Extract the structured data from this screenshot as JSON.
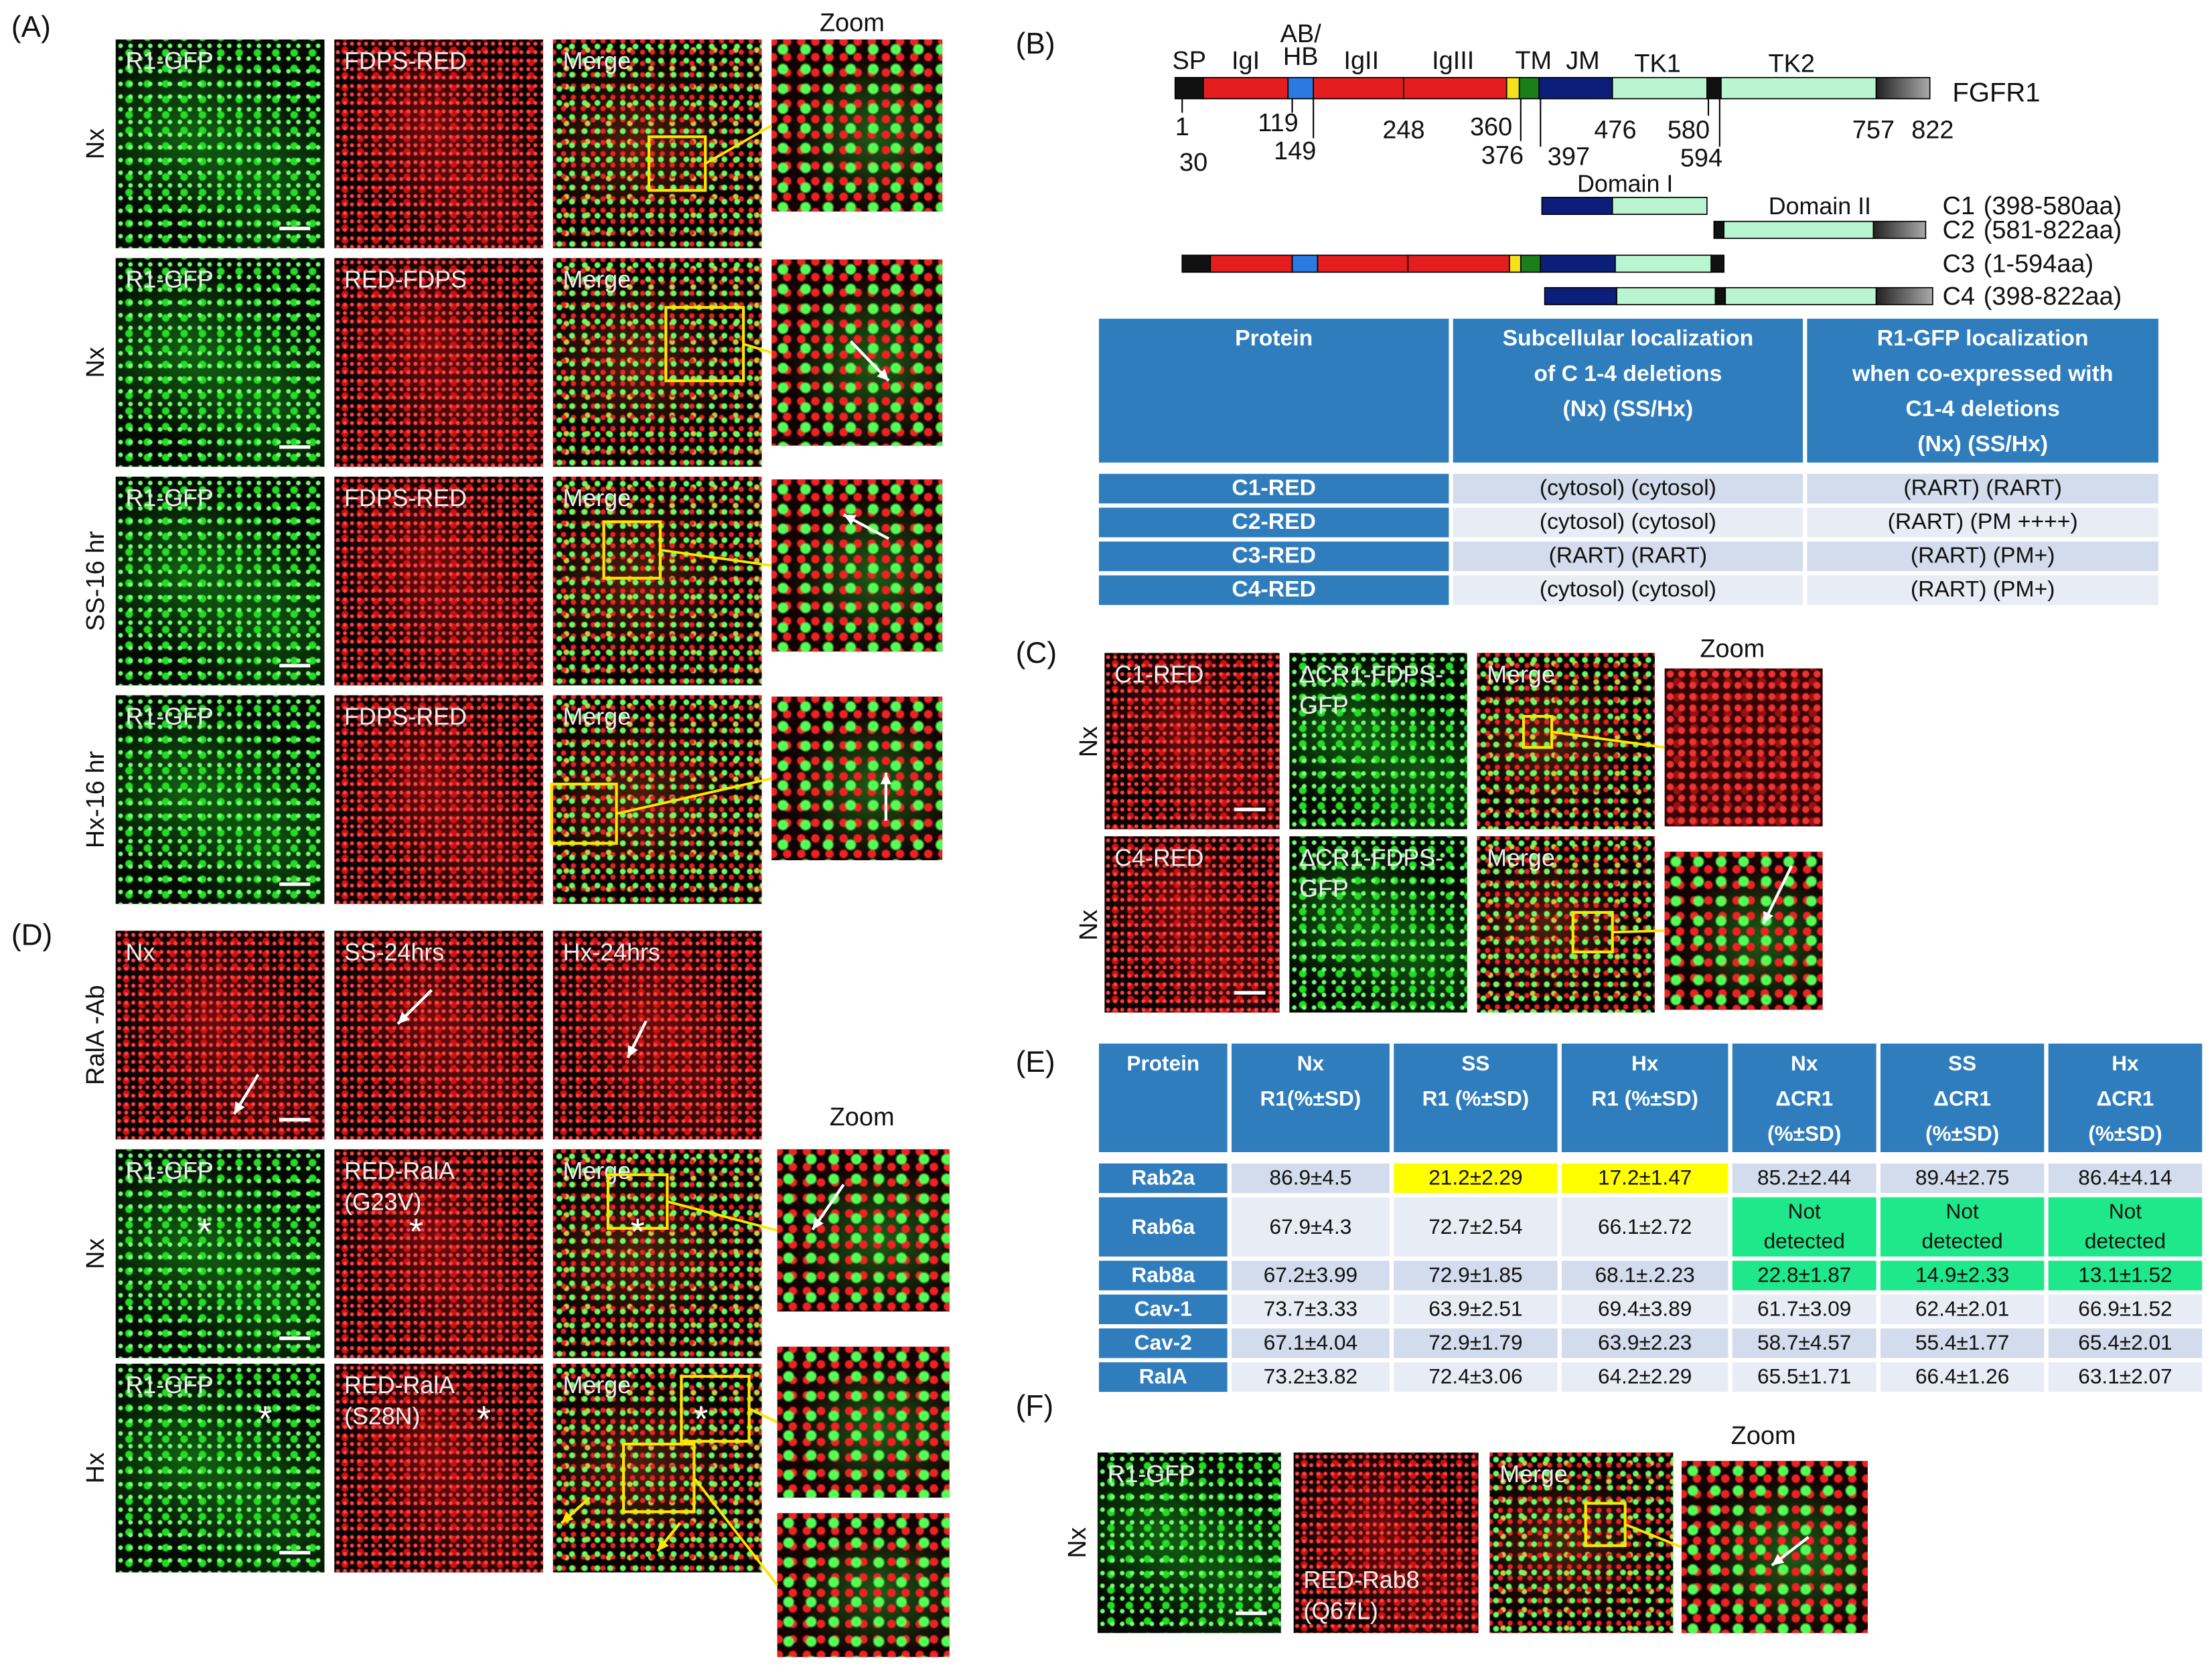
{
  "panel_A": {
    "label": "(A)",
    "zoom_header": "Zoom",
    "zooms": [
      "merge",
      "merge",
      "merge",
      "merge"
    ],
    "rows": [
      {
        "condition": "Nx",
        "images": [
          {
            "text": [
              "R1-GFP"
            ],
            "channel": "green"
          },
          {
            "text": [
              "FDPS-RED"
            ],
            "channel": "red"
          },
          {
            "text": [
              "Merge"
            ],
            "channel": "merge"
          }
        ]
      },
      {
        "condition": "Nx",
        "images": [
          {
            "text": [
              "R1-GFP"
            ],
            "channel": "green"
          },
          {
            "text": [
              "RED-FDPS"
            ],
            "channel": "red"
          },
          {
            "text": [
              "Merge"
            ],
            "channel": "merge"
          }
        ]
      },
      {
        "condition": "SS-16 hr",
        "images": [
          {
            "text": [
              "R1-GFP"
            ],
            "channel": "green"
          },
          {
            "text": [
              "FDPS-RED"
            ],
            "channel": "red"
          },
          {
            "text": [
              "Merge"
            ],
            "channel": "merge"
          }
        ]
      },
      {
        "condition": "Hx-16 hr",
        "images": [
          {
            "text": [
              "R1-GFP"
            ],
            "channel": "green"
          },
          {
            "text": [
              "FDPS-RED"
            ],
            "channel": "red"
          },
          {
            "text": [
              "Merge"
            ],
            "channel": "merge"
          }
        ]
      }
    ]
  },
  "panel_B": {
    "label": "(B)",
    "protein": "FGFR1",
    "domain_labels": [
      [
        "SP"
      ],
      [
        "IgI"
      ],
      [
        "AB/",
        "HB"
      ],
      [
        "IgII"
      ],
      [
        "IgIII"
      ],
      [
        "TM"
      ],
      [
        "JM"
      ],
      [
        "TK1"
      ],
      [
        "TK2"
      ]
    ],
    "positions": [
      1,
      30,
      119,
      149,
      248,
      360,
      376,
      397,
      476,
      580,
      594,
      757,
      822
    ],
    "region_labels": [
      "Domain I",
      "Domain II"
    ],
    "constructs": [
      {
        "name": "C1",
        "range": "(398-580aa)"
      },
      {
        "name": "C2",
        "range": "(581-822aa)"
      },
      {
        "name": "C3",
        "range": "(1-594aa)"
      },
      {
        "name": "C4",
        "range": "(398-822aa)"
      }
    ],
    "table": {
      "header": [
        [
          "Protein"
        ],
        [
          "Subcellular localization",
          "of  C 1-4 deletions",
          "(Nx) (SS/Hx)"
        ],
        [
          "R1-GFP localization",
          "when co-expressed with",
          "C1-4  deletions",
          "(Nx) (SS/Hx)"
        ]
      ],
      "rows": [
        [
          "C1-RED",
          "(cytosol) (cytosol)",
          "(RART) (RART)"
        ],
        [
          "C2-RED",
          "(cytosol) (cytosol)",
          "(RART) (PM ++++)"
        ],
        [
          "C3-RED",
          "(RART) (RART)",
          "(RART) (PM+)"
        ],
        [
          "C4-RED",
          "(cytosol) (cytosol)",
          "(RART) (PM+)"
        ]
      ]
    }
  },
  "panel_C": {
    "label": "(C)",
    "zoom_header": "Zoom",
    "zooms": [
      "red",
      "merge"
    ],
    "rows": [
      {
        "condition": "Nx",
        "images": [
          {
            "text": [
              "C1-RED"
            ],
            "channel": "red"
          },
          {
            "text": [
              "ΔCR1-FDPS-",
              "GFP"
            ],
            "channel": "green"
          },
          {
            "text": [
              "Merge"
            ],
            "channel": "merge"
          }
        ]
      },
      {
        "condition": "Nx",
        "images": [
          {
            "text": [
              "C4-RED"
            ],
            "channel": "red"
          },
          {
            "text": [
              "ΔCR1-FDPS-",
              "GFP"
            ],
            "channel": "green"
          },
          {
            "text": [
              "Merge"
            ],
            "channel": "merge"
          }
        ]
      }
    ]
  },
  "panel_D": {
    "label": "(D)",
    "zoom_header": "Zoom",
    "asterisk": "*",
    "zooms": [
      "merge",
      "merge",
      "merge"
    ],
    "rows": [
      {
        "condition": "RalA -Ab",
        "images": [
          {
            "text": [
              "Nx"
            ],
            "channel": "red"
          },
          {
            "text": [
              "SS-24hrs"
            ],
            "channel": "red"
          },
          {
            "text": [
              "Hx-24hrs"
            ],
            "channel": "red"
          }
        ]
      },
      {
        "condition": "Nx",
        "images": [
          {
            "text": [
              "R1-GFP"
            ],
            "channel": "green"
          },
          {
            "text": [
              "RED-RalA",
              "(G23V)"
            ],
            "channel": "red"
          },
          {
            "text": [
              "Merge"
            ],
            "channel": "merge"
          }
        ]
      },
      {
        "condition": "Hx",
        "images": [
          {
            "text": [
              "R1-GFP"
            ],
            "channel": "green"
          },
          {
            "text": [
              "RED-RalA",
              "(S28N)"
            ],
            "channel": "red"
          },
          {
            "text": [
              "Merge"
            ],
            "channel": "merge"
          }
        ]
      }
    ]
  },
  "panel_E": {
    "label": "(E)",
    "table": {
      "header": [
        [
          "Protein"
        ],
        [
          "Nx",
          "R1(%±SD)"
        ],
        [
          "SS",
          "R1 (%±SD)"
        ],
        [
          "Hx",
          "R1 (%±SD)"
        ],
        [
          "Nx",
          "ΔCR1",
          "(%±SD)"
        ],
        [
          "SS",
          "ΔCR1",
          "(%±SD)"
        ],
        [
          "Hx",
          "ΔCR1",
          "(%±SD)"
        ]
      ],
      "rows": [
        {
          "protein": "Rab2a",
          "cells": [
            "86.9±4.5",
            "21.2±2.29",
            "17.2±1.47",
            "85.2±2.44",
            "89.4±2.75",
            "86.4±4.14"
          ]
        },
        {
          "protein": "Rab6a",
          "cells": [
            "67.9±4.3",
            "72.7±2.54",
            "66.1±2.72",
            "Not detected",
            "Not detected",
            "Not detected"
          ]
        },
        {
          "protein": "Rab8a",
          "cells": [
            "67.2±3.99",
            "72.9±1.85",
            "68.1±.2.23",
            "22.8±1.87",
            "14.9±2.33",
            "13.1±1.52"
          ]
        },
        {
          "protein": "Cav-1",
          "cells": [
            "73.7±3.33",
            "63.9±2.51",
            "69.4±3.89",
            "61.7±3.09",
            "62.4±2.01",
            "66.9±1.52"
          ]
        },
        {
          "protein": "Cav-2",
          "cells": [
            "67.1±4.04",
            "72.9±1.79",
            "63.9±2.23",
            "58.7±4.57",
            "55.4±1.77",
            "65.4±2.01"
          ]
        },
        {
          "protein": "RalA",
          "cells": [
            "73.2±3.82",
            "72.4±3.06",
            "64.2±2.29",
            "65.5±1.71",
            "66.4±1.26",
            "63.1±2.07"
          ]
        }
      ],
      "highlights": [
        {
          "row": 0,
          "col": 1,
          "color": "#ffff00"
        },
        {
          "row": 0,
          "col": 2,
          "color": "#ffff00"
        },
        {
          "row": 1,
          "col": 3,
          "color": "#1ee88a"
        },
        {
          "row": 1,
          "col": 4,
          "color": "#1ee88a"
        },
        {
          "row": 1,
          "col": 5,
          "color": "#1ee88a"
        },
        {
          "row": 2,
          "col": 3,
          "color": "#1ee88a"
        },
        {
          "row": 2,
          "col": 4,
          "color": "#1ee88a"
        },
        {
          "row": 2,
          "col": 5,
          "color": "#1ee88a"
        }
      ]
    }
  },
  "panel_F": {
    "label": "(F)",
    "zoom_header": "Zoom",
    "zooms": [
      "merge"
    ],
    "rows": [
      {
        "condition": "Nx",
        "images": [
          {
            "text": [
              "R1-GFP"
            ],
            "channel": "green"
          },
          {
            "text": [
              "RED-Rab8",
              "(Q67L)"
            ],
            "channel": "red"
          },
          {
            "text": [
              "Merge"
            ],
            "channel": "merge"
          }
        ]
      }
    ]
  }
}
